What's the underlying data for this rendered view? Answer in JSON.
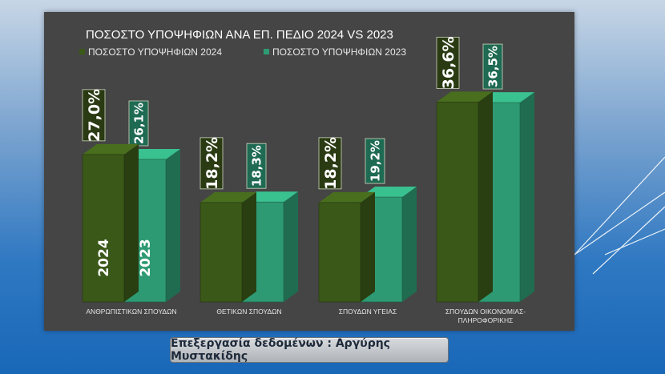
{
  "colors": {
    "series_2024": "#3a5818",
    "series_2023": "#2e9a73",
    "text": "#ffffff",
    "panel": "#454545"
  },
  "credit_text": "Επεξεργασία δεδομένων : Αργύρης Μυστακίδης",
  "chart_data": {
    "type": "bar",
    "title": "ΠΟΣΟΣΤΟ ΥΠΟΨΗΦΙΩΝ ΑΝΑ ΕΠ. ΠΕΔΙΟ 2024 VS 2023",
    "categories": [
      [
        "ΑΝΘΡΩΠΙΣΤΙΚΩΝ ΣΠΟΥΔΩΝ"
      ],
      [
        "ΘΕΤΙΚΩΝ ΣΠΟΥΔΩΝ"
      ],
      [
        "ΣΠΟΥΔΩΝ ΥΓΕΙΑΣ"
      ],
      [
        "ΣΠΟΥΔΩΝ ΟΙΚΟΝΟΜΙΑΣ-",
        "ΠΛΗΡΟΦΟΡΙΚΗΣ"
      ]
    ],
    "series": [
      {
        "name": "ΠΟΣΟΣΤΟ  ΥΠΟΨΗΦΙΩΝ 2024",
        "values": [
          27.0,
          18.2,
          18.2,
          36.6
        ],
        "labels": [
          "27,0%",
          "18,2%",
          "18,2%",
          "36,6%"
        ],
        "bar_text": "2024"
      },
      {
        "name": "ΠΟΣΟΣΤΟ  ΥΠΟΨΗΦΙΩΝ 2023",
        "values": [
          26.1,
          18.3,
          19.2,
          36.5
        ],
        "labels": [
          "26,1%",
          "18,3%",
          "19,2%",
          "36,5%"
        ],
        "bar_text": "2023"
      }
    ],
    "ylim": [
      0,
      40
    ],
    "legend": "top-left"
  }
}
